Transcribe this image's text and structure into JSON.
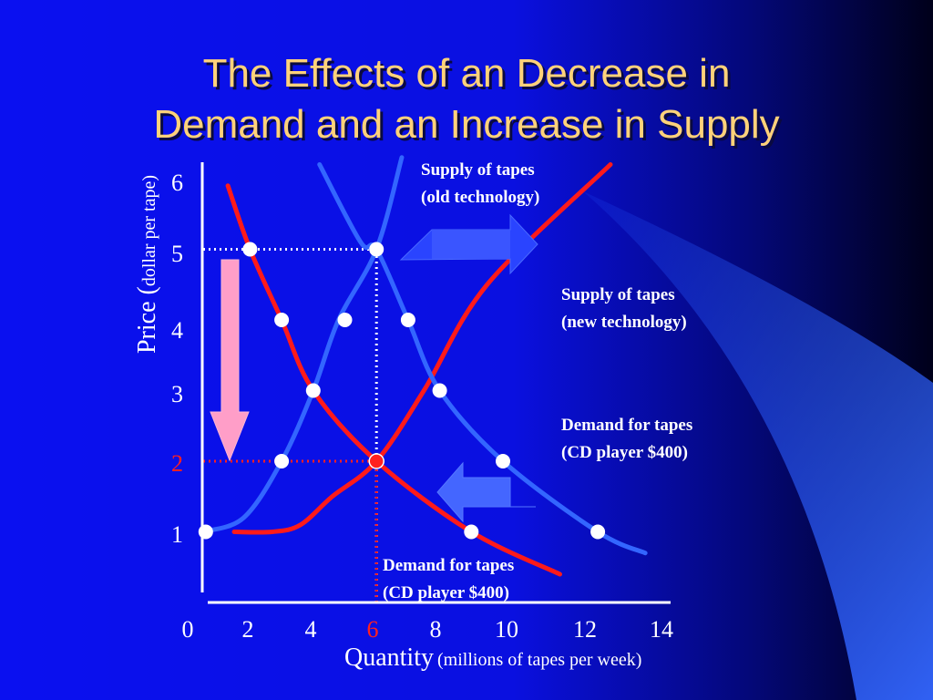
{
  "slide": {
    "title_line1": "The Effects of an Decrease in",
    "title_line2": "Demand and an Increase in Supply"
  },
  "colors": {
    "background_left": "#0a0af0",
    "background_right": "#000022",
    "title": "#ffd27a",
    "supply_curve": "#ff1a1a",
    "demand_curve": "#3366ff",
    "point": "#ffffff",
    "equilibrium_point": "#ff2020",
    "highlight_label": "#ff2020",
    "price_arrow": "#ff9ec8"
  },
  "chart_data": {
    "type": "line",
    "xlabel_main": "Quantity",
    "xlabel_unit": "(millions of tapes per week)",
    "ylabel_main": "Price (",
    "ylabel_unit": "dollar per tape)",
    "xlim": [
      0,
      14
    ],
    "ylim": [
      0,
      6
    ],
    "x_ticks": [
      "0",
      "2",
      "4",
      "6",
      "8",
      "10",
      "12",
      "14"
    ],
    "y_ticks": [
      "1",
      "2",
      "3",
      "4",
      "5",
      "6"
    ],
    "highlight_x_tick": "6",
    "highlight_y_tick": "2",
    "grid": false,
    "curves": [
      {
        "id": "supply-old",
        "color": "#3366ff",
        "label_line1": "Supply of tapes",
        "label_line2": "(old technology)",
        "points": [
          [
            0.5,
            1
          ],
          [
            1.8,
            1.2
          ],
          [
            3,
            2
          ],
          [
            4,
            3
          ],
          [
            4.8,
            4
          ],
          [
            6,
            5
          ],
          [
            6.8,
            6.3
          ]
        ]
      },
      {
        "id": "supply-new",
        "color": "#ff1a1a",
        "label_line1": "Supply of tapes",
        "label_line2": "(new technology)",
        "points": [
          [
            1.5,
            1
          ],
          [
            2.7,
            1
          ],
          [
            3.6,
            1.1
          ],
          [
            4.6,
            1.5
          ],
          [
            6,
            2
          ],
          [
            7.5,
            3
          ],
          [
            9.5,
            4.5
          ],
          [
            13.4,
            6.2
          ]
        ]
      },
      {
        "id": "demand-400",
        "color": "#3366ff",
        "label_line1": "Demand for tapes",
        "label_line2": "(CD player  $400)",
        "points": [
          [
            4.2,
            6.2
          ],
          [
            5.5,
            5.1
          ],
          [
            6,
            5
          ],
          [
            7,
            4
          ],
          [
            8,
            3
          ],
          [
            10,
            2
          ],
          [
            13,
            1
          ],
          [
            14.5,
            0.7
          ]
        ]
      },
      {
        "id": "demand-shifted",
        "color": "#ff1a1a",
        "label_line1": "Demand for tapes",
        "label_line2": "(CD player  $400)",
        "points": [
          [
            1.3,
            5.9
          ],
          [
            2,
            5
          ],
          [
            3,
            4
          ],
          [
            4,
            3
          ],
          [
            6,
            2
          ],
          [
            9,
            1
          ],
          [
            11.8,
            0.4
          ]
        ]
      }
    ],
    "points": [
      {
        "x": 0.6,
        "y": 1
      },
      {
        "x": 2,
        "y": 5
      },
      {
        "x": 6,
        "y": 5
      },
      {
        "x": 3,
        "y": 4
      },
      {
        "x": 5,
        "y": 4
      },
      {
        "x": 7,
        "y": 4
      },
      {
        "x": 4,
        "y": 3
      },
      {
        "x": 8,
        "y": 3
      },
      {
        "x": 3,
        "y": 2
      },
      {
        "x": 10,
        "y": 2
      },
      {
        "x": 9,
        "y": 1
      },
      {
        "x": 13,
        "y": 1
      }
    ],
    "equilibrium": {
      "x": 6,
      "y": 2
    },
    "dotted_guides": [
      {
        "from": [
          0,
          5
        ],
        "to": [
          6,
          5
        ],
        "color": "#ffffff"
      },
      {
        "from": [
          6,
          0
        ],
        "to": [
          6,
          5
        ],
        "color": "#ffffff"
      },
      {
        "from": [
          0,
          2
        ],
        "to": [
          6,
          2
        ],
        "color": "#ff2020"
      },
      {
        "from": [
          6,
          0
        ],
        "to": [
          6,
          2
        ],
        "color": "#ff2020"
      }
    ],
    "arrows": [
      {
        "meaning": "supply increase",
        "direction": "right"
      },
      {
        "meaning": "demand decrease",
        "direction": "left"
      },
      {
        "meaning": "price falls",
        "direction": "down"
      }
    ]
  }
}
